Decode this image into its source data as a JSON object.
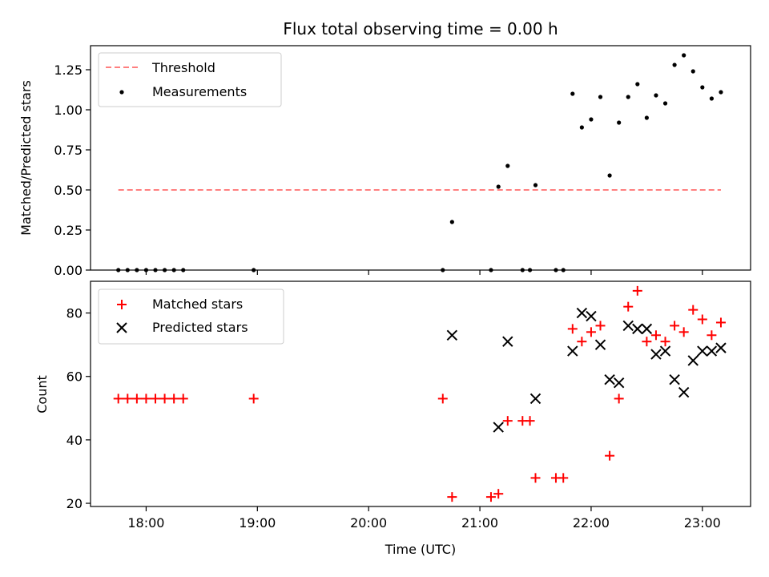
{
  "chart_data": [
    {
      "type": "scatter",
      "title": "Flux total observing time = 0.00 h",
      "xlabel": "",
      "ylabel": "Matched/Predicted stars",
      "xlim": [
        "17:30",
        "23:26"
      ],
      "ylim": [
        0,
        1.4
      ],
      "yticks": [
        "0.00",
        "0.25",
        "0.50",
        "0.75",
        "1.00",
        "1.25"
      ],
      "legend_position": "top-left",
      "series": [
        {
          "name": "Threshold",
          "kind": "line",
          "style": "dashed",
          "color": "#ff7f7f",
          "points": [
            [
              "17:45",
              0.5
            ],
            [
              "23:10",
              0.5
            ]
          ]
        },
        {
          "name": "Measurements",
          "kind": "scatter",
          "marker": "dot",
          "color": "#000000",
          "points": [
            [
              "17:45",
              0
            ],
            [
              "17:50",
              0
            ],
            [
              "17:55",
              0
            ],
            [
              "18:00",
              0
            ],
            [
              "18:05",
              0
            ],
            [
              "18:10",
              0
            ],
            [
              "18:15",
              0
            ],
            [
              "18:20",
              0
            ],
            [
              "18:58",
              0
            ],
            [
              "20:40",
              0
            ],
            [
              "20:45",
              0.3
            ],
            [
              "21:06",
              0
            ],
            [
              "21:10",
              0.52
            ],
            [
              "21:15",
              0.65
            ],
            [
              "21:23",
              0
            ],
            [
              "21:27",
              0
            ],
            [
              "21:30",
              0.53
            ],
            [
              "21:41",
              0
            ],
            [
              "21:45",
              0
            ],
            [
              "21:50",
              1.1
            ],
            [
              "21:55",
              0.89
            ],
            [
              "22:00",
              0.94
            ],
            [
              "22:05",
              1.08
            ],
            [
              "22:10",
              0.59
            ],
            [
              "22:15",
              0.92
            ],
            [
              "22:20",
              1.08
            ],
            [
              "22:25",
              1.16
            ],
            [
              "22:30",
              0.95
            ],
            [
              "22:35",
              1.09
            ],
            [
              "22:40",
              1.04
            ],
            [
              "22:45",
              1.28
            ],
            [
              "22:50",
              1.34
            ],
            [
              "22:55",
              1.24
            ],
            [
              "23:00",
              1.14
            ],
            [
              "23:05",
              1.07
            ],
            [
              "23:10",
              1.11
            ]
          ]
        }
      ]
    },
    {
      "type": "scatter",
      "title": "",
      "xlabel": "Time (UTC)",
      "ylabel": "Count",
      "xlim": [
        "17:30",
        "23:26"
      ],
      "ylim": [
        19,
        90
      ],
      "yticks": [
        "20",
        "40",
        "60",
        "80"
      ],
      "xticks": [
        "18:00",
        "19:00",
        "20:00",
        "21:00",
        "22:00",
        "23:00"
      ],
      "legend_position": "top-left",
      "series": [
        {
          "name": "Matched stars",
          "kind": "scatter",
          "marker": "plus",
          "color": "#ff0000",
          "points": [
            [
              "17:45",
              53
            ],
            [
              "17:50",
              53
            ],
            [
              "17:55",
              53
            ],
            [
              "18:00",
              53
            ],
            [
              "18:05",
              53
            ],
            [
              "18:10",
              53
            ],
            [
              "18:15",
              53
            ],
            [
              "18:20",
              53
            ],
            [
              "18:58",
              53
            ],
            [
              "20:40",
              53
            ],
            [
              "20:45",
              22
            ],
            [
              "21:06",
              22
            ],
            [
              "21:10",
              23
            ],
            [
              "21:15",
              46
            ],
            [
              "21:23",
              46
            ],
            [
              "21:27",
              46
            ],
            [
              "21:30",
              28
            ],
            [
              "21:41",
              28
            ],
            [
              "21:45",
              28
            ],
            [
              "21:50",
              75
            ],
            [
              "21:55",
              71
            ],
            [
              "22:00",
              74
            ],
            [
              "22:05",
              76
            ],
            [
              "22:10",
              35
            ],
            [
              "22:15",
              53
            ],
            [
              "22:20",
              82
            ],
            [
              "22:25",
              87
            ],
            [
              "22:30",
              71
            ],
            [
              "22:35",
              73
            ],
            [
              "22:40",
              71
            ],
            [
              "22:45",
              76
            ],
            [
              "22:50",
              74
            ],
            [
              "22:55",
              81
            ],
            [
              "23:00",
              78
            ],
            [
              "23:05",
              73
            ],
            [
              "23:10",
              77
            ]
          ]
        },
        {
          "name": "Predicted stars",
          "kind": "scatter",
          "marker": "x",
          "color": "#000000",
          "points": [
            [
              "20:45",
              73
            ],
            [
              "21:10",
              44
            ],
            [
              "21:15",
              71
            ],
            [
              "21:30",
              53
            ],
            [
              "21:50",
              68
            ],
            [
              "21:55",
              80
            ],
            [
              "22:00",
              79
            ],
            [
              "22:05",
              70
            ],
            [
              "22:10",
              59
            ],
            [
              "22:15",
              58
            ],
            [
              "22:20",
              76
            ],
            [
              "22:25",
              75
            ],
            [
              "22:30",
              75
            ],
            [
              "22:35",
              67
            ],
            [
              "22:40",
              68
            ],
            [
              "22:45",
              59
            ],
            [
              "22:50",
              55
            ],
            [
              "22:55",
              65
            ],
            [
              "23:00",
              68
            ],
            [
              "23:05",
              68
            ],
            [
              "23:10",
              69
            ]
          ]
        }
      ]
    }
  ]
}
